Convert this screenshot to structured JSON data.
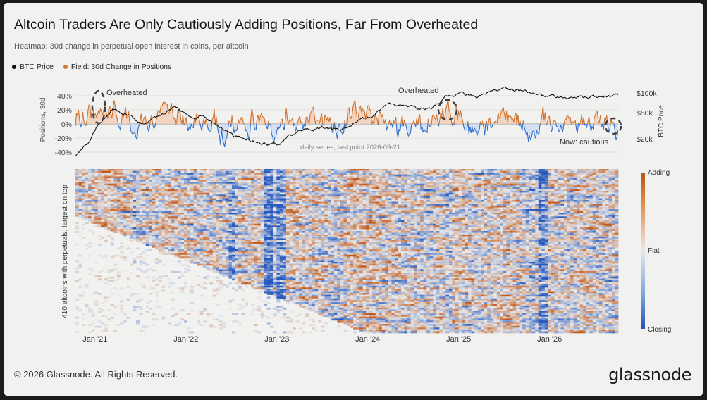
{
  "title": "Altcoin Traders Are Only Cautiously Adding Positions, Far From Overheated",
  "subtitle": "Heatmap: 30d change in perpetual open interest in coins, per altcoin",
  "legend": [
    {
      "label": "BTC Price",
      "color": "#111111"
    },
    {
      "label": "Field: 30d Change in Positions",
      "color": "#d27a2e"
    }
  ],
  "footer": "© 2026 Glassnode. All Rights Reserved.",
  "brand": "glassnode",
  "colors": {
    "adding": "#c9601e",
    "closing": "#2f6fd0",
    "btc": "#111111",
    "field_area": "#f3d2bd"
  },
  "chart_data": [
    {
      "type": "line",
      "ylabel_left": "Positions, 30d",
      "ylabel_right": "BTC Price",
      "left_ticks": [
        "40%",
        "20%",
        "0%",
        "-20%",
        "-40%"
      ],
      "right_ticks": [
        "$100k",
        "$50k",
        "$20k"
      ],
      "ylim_left": [
        -0.4,
        0.4
      ],
      "right_scale": "log",
      "x_ticks": [
        "Jan '21",
        "Jan '22",
        "Jan '23",
        "Jan '24",
        "Jan '25",
        "Jan '26"
      ],
      "note": "daily series, last point 2026-09-21",
      "annotations": [
        "Overheated",
        "Overheated",
        "Now: cautious"
      ],
      "series": [
        {
          "name": "BTC Price",
          "x": [
            "2020-10",
            "2020-12",
            "2021-01",
            "2021-03",
            "2021-05",
            "2021-07",
            "2021-09",
            "2021-11",
            "2022-01",
            "2022-03",
            "2022-05",
            "2022-07",
            "2022-09",
            "2022-11",
            "2023-01",
            "2023-03",
            "2023-05",
            "2023-07",
            "2023-09",
            "2023-11",
            "2024-01",
            "2024-03",
            "2024-05",
            "2024-07",
            "2024-09",
            "2024-11",
            "2025-01",
            "2025-03",
            "2025-05",
            "2025-07",
            "2025-09",
            "2025-11",
            "2026-01",
            "2026-03",
            "2026-05",
            "2026-07",
            "2026-09"
          ],
          "values": [
            11000,
            19000,
            33000,
            55000,
            45000,
            33000,
            44000,
            63000,
            42000,
            44000,
            30000,
            21000,
            19500,
            16500,
            17000,
            25000,
            27500,
            30000,
            26500,
            36000,
            43000,
            68000,
            64000,
            60000,
            58000,
            90000,
            98000,
            84000,
            104000,
            115000,
            112000,
            90000,
            88000,
            82000,
            86000,
            88000,
            92000
          ]
        },
        {
          "name": "Field: 30d Change in Positions",
          "x": [
            "2020-10",
            "2020-12",
            "2021-02",
            "2021-04",
            "2021-06",
            "2021-08",
            "2021-10",
            "2021-12",
            "2022-02",
            "2022-04",
            "2022-06",
            "2022-08",
            "2022-10",
            "2022-12",
            "2023-02",
            "2023-04",
            "2023-06",
            "2023-08",
            "2023-10",
            "2023-12",
            "2024-02",
            "2024-04",
            "2024-06",
            "2024-08",
            "2024-10",
            "2024-12",
            "2025-02",
            "2025-04",
            "2025-06",
            "2025-08",
            "2025-10",
            "2025-12",
            "2026-02",
            "2026-04",
            "2026-06",
            "2026-08",
            "2026-09"
          ],
          "values": [
            0.1,
            0.2,
            0.35,
            0.15,
            -0.15,
            0.12,
            0.2,
            0.05,
            -0.05,
            0.1,
            -0.2,
            0.05,
            0.1,
            -0.3,
            0.2,
            0.05,
            0.12,
            -0.05,
            0.15,
            0.25,
            0.2,
            -0.05,
            0.08,
            -0.05,
            0.15,
            0.3,
            -0.05,
            0.05,
            0.2,
            0.15,
            -0.35,
            0.15,
            -0.05,
            0.08,
            0.02,
            0.05,
            -0.08
          ]
        }
      ]
    },
    {
      "type": "heatmap",
      "ylabel": "410 altcoins with perpetuals, largest on top",
      "x_ticks": [
        "Jan '21",
        "Jan '22",
        "Jan '23",
        "Jan '24",
        "Jan '25",
        "Jan '26"
      ],
      "colorbar_labels": [
        "Adding",
        "Flat",
        "Closing"
      ],
      "rows": 410
    }
  ]
}
